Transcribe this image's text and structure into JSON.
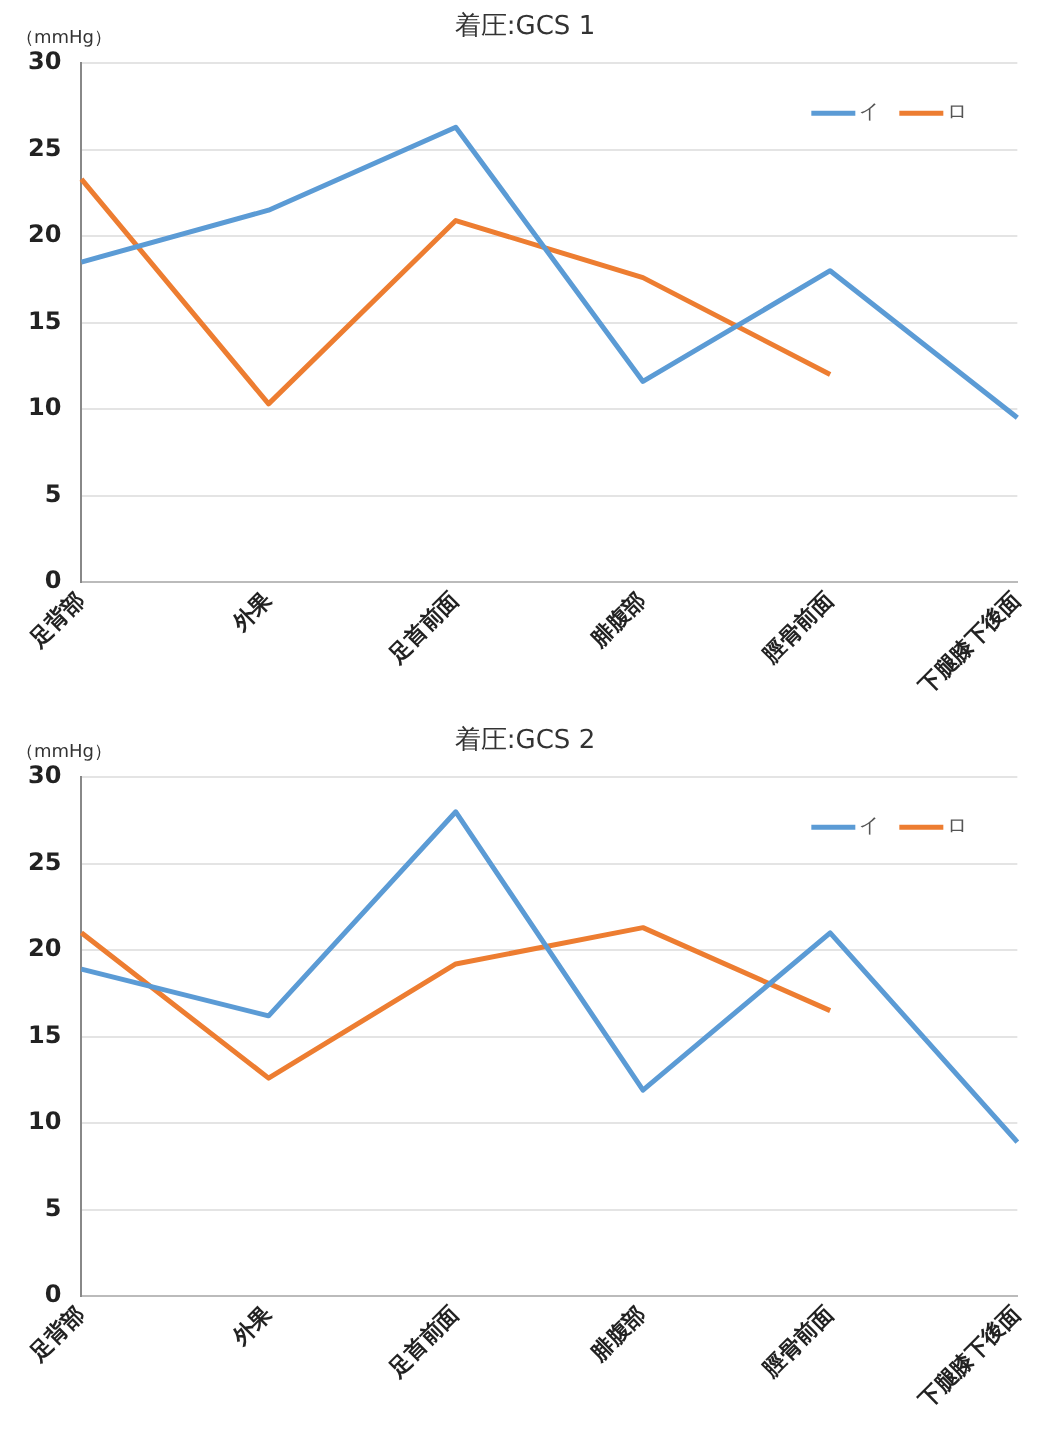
{
  "chart_data": [
    {
      "type": "line",
      "title": "着圧:GCS 1",
      "ylabel": "（mmHg）",
      "categories": [
        "足背部",
        "外果",
        "足首前面",
        "腓腹部",
        "脛骨前面",
        "下腿膝下後面"
      ],
      "series": [
        {
          "name": "イ",
          "color": "#5b9bd5",
          "values": [
            18.5,
            21.5,
            26.3,
            11.6,
            18.0,
            9.5
          ]
        },
        {
          "name": "ロ",
          "color": "#ed7d31",
          "values": [
            23.3,
            10.3,
            20.9,
            17.6,
            12.0,
            null
          ]
        }
      ],
      "ylim": [
        0,
        30
      ],
      "yticks": [
        0,
        5,
        10,
        15,
        20,
        25,
        30
      ],
      "grid": "y",
      "legend": "top right",
      "marker": "none",
      "line_style": "solid"
    },
    {
      "type": "line",
      "title": "着圧:GCS 2",
      "ylabel": "（mmHg）",
      "categories": [
        "足背部",
        "外果",
        "足首前面",
        "腓腹部",
        "脛骨前面",
        "下腿膝下後面"
      ],
      "series": [
        {
          "name": "イ",
          "color": "#5b9bd5",
          "values": [
            18.9,
            16.2,
            28.0,
            11.9,
            21.0,
            8.9
          ]
        },
        {
          "name": "ロ",
          "color": "#ed7d31",
          "values": [
            21.0,
            12.6,
            19.2,
            21.3,
            16.5,
            null
          ]
        }
      ],
      "ylim": [
        0,
        30
      ],
      "yticks": [
        0,
        5,
        10,
        15,
        20,
        25,
        30
      ],
      "grid": "y",
      "legend": "top right",
      "marker": "none",
      "line_style": "solid"
    }
  ]
}
